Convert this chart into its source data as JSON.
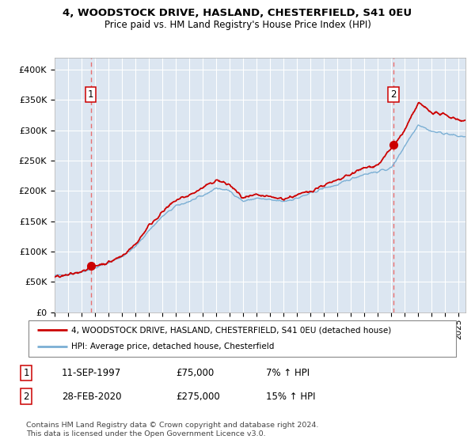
{
  "title": "4, WOODSTOCK DRIVE, HASLAND, CHESTERFIELD, S41 0EU",
  "subtitle": "Price paid vs. HM Land Registry's House Price Index (HPI)",
  "yticks": [
    0,
    50000,
    100000,
    150000,
    200000,
    250000,
    300000,
    350000,
    400000
  ],
  "ylim": [
    0,
    420000
  ],
  "xlim_start": 1995.0,
  "xlim_end": 2025.5,
  "transaction1": {
    "date_num": 1997.69,
    "price": 75000
  },
  "transaction2": {
    "date_num": 2020.16,
    "price": 275000
  },
  "legend_property": "4, WOODSTOCK DRIVE, HASLAND, CHESTERFIELD, S41 0EU (detached house)",
  "legend_hpi": "HPI: Average price, detached house, Chesterfield",
  "footnote": "Contains HM Land Registry data © Crown copyright and database right 2024.\nThis data is licensed under the Open Government Licence v3.0.",
  "table_rows": [
    {
      "num": "1",
      "date": "11-SEP-1997",
      "price": "£75,000",
      "pct": "7% ↑ HPI"
    },
    {
      "num": "2",
      "date": "28-FEB-2020",
      "price": "£275,000",
      "pct": "15% ↑ HPI"
    }
  ],
  "property_color": "#cc0000",
  "hpi_color": "#7bafd4",
  "background_color": "#dce6f1",
  "grid_color": "#ffffff",
  "dashed_line_color": "#e87070"
}
